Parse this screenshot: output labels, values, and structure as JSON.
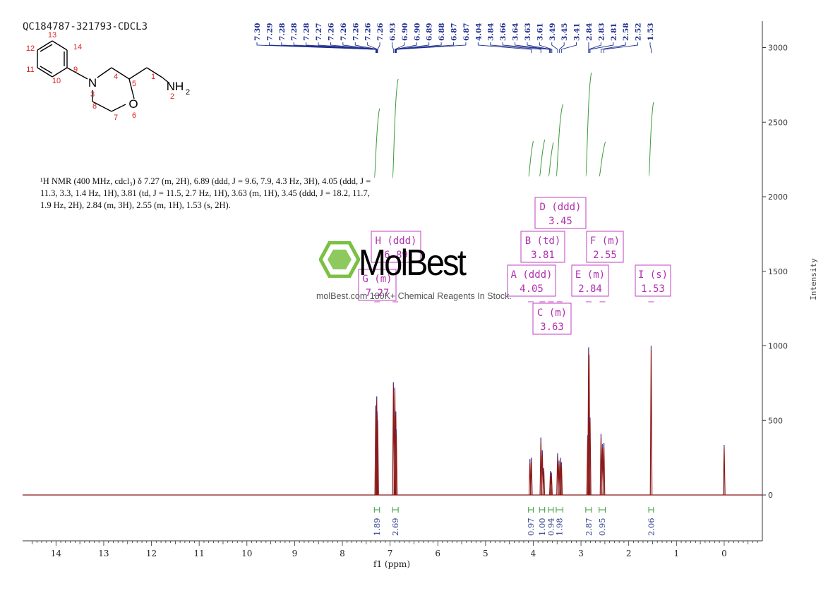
{
  "sample_id": "QC184787-321793-CDCL3",
  "structure": {
    "atoms": [
      "13",
      "14",
      "12",
      "11",
      "9",
      "10",
      "N",
      "3",
      "4",
      "5",
      "1",
      "NH",
      "2",
      "2",
      "8",
      "O",
      "6",
      "7"
    ]
  },
  "nmr_description": {
    "lines": [
      "¹H NMR (400 MHz, cdcl₃) δ 7.27 (m, 2H), 6.89 (ddd, J = 9.6, 7.9, 4.3 Hz, 3H), 4.05 (ddd, J =",
      "11.3, 3.3, 1.4 Hz, 1H), 3.81 (td, J = 11.5, 2.7 Hz, 1H), 3.63 (m, 1H), 3.45 (ddd, J = 18.2, 11.7,",
      "1.9 Hz, 2H), 2.84 (m, 3H), 2.55 (m, 1H), 1.53 (s, 2H)."
    ]
  },
  "watermark": {
    "brand": "MolBest",
    "tagline": "molBest.com 180K+ Chemical Reagents In Stock."
  },
  "colors": {
    "spectrum": "#8b1a1a",
    "peak_label": "#1f2f8f",
    "integral": "#3a9a3a",
    "multiplet_box": "#c040c0",
    "watermark_green": "#7ac043",
    "axis": "#333333"
  },
  "chart_data": {
    "type": "line",
    "xlabel": "f1 (ppm)",
    "ylabel": "Intensity",
    "x_reversed": true,
    "xlim": [
      14.7,
      -0.8
    ],
    "ylim": [
      -300,
      3200
    ],
    "x_ticks": [
      14,
      13,
      12,
      11,
      10,
      9,
      8,
      7,
      6,
      5,
      4,
      3,
      2,
      1,
      0
    ],
    "y_ticks": [
      0,
      500,
      1000,
      1500,
      2000,
      2500,
      3000
    ],
    "peak_labels": [
      "7.30",
      "7.29",
      "7.28",
      "7.28",
      "7.28",
      "7.27",
      "7.26",
      "7.26",
      "7.26",
      "7.26",
      "7.26",
      "6.93",
      "6.90",
      "6.90",
      "6.89",
      "6.88",
      "6.87",
      "6.87",
      "4.04",
      "3.84",
      "3.66",
      "3.64",
      "3.63",
      "3.61",
      "3.49",
      "3.45",
      "3.41",
      "2.84",
      "2.83",
      "2.81",
      "2.58",
      "2.52",
      "1.53"
    ],
    "peaks": [
      {
        "ppm": 7.3,
        "height": 600
      },
      {
        "ppm": 7.28,
        "height": 660
      },
      {
        "ppm": 7.27,
        "height": 560
      },
      {
        "ppm": 7.26,
        "height": 500
      },
      {
        "ppm": 6.93,
        "height": 755
      },
      {
        "ppm": 6.9,
        "height": 720
      },
      {
        "ppm": 6.88,
        "height": 560
      },
      {
        "ppm": 6.87,
        "height": 440
      },
      {
        "ppm": 4.07,
        "height": 240
      },
      {
        "ppm": 4.04,
        "height": 250
      },
      {
        "ppm": 3.84,
        "height": 385
      },
      {
        "ppm": 3.81,
        "height": 300
      },
      {
        "ppm": 3.78,
        "height": 180
      },
      {
        "ppm": 3.64,
        "height": 160
      },
      {
        "ppm": 3.62,
        "height": 150
      },
      {
        "ppm": 3.49,
        "height": 280
      },
      {
        "ppm": 3.46,
        "height": 230
      },
      {
        "ppm": 3.43,
        "height": 250
      },
      {
        "ppm": 3.41,
        "height": 220
      },
      {
        "ppm": 2.86,
        "height": 400
      },
      {
        "ppm": 2.84,
        "height": 990
      },
      {
        "ppm": 2.83,
        "height": 940
      },
      {
        "ppm": 2.81,
        "height": 520
      },
      {
        "ppm": 2.58,
        "height": 410
      },
      {
        "ppm": 2.55,
        "height": 340
      },
      {
        "ppm": 2.52,
        "height": 350
      },
      {
        "ppm": 1.53,
        "height": 1000
      },
      {
        "ppm": 0.0,
        "height": 335
      }
    ],
    "multiplets": [
      {
        "label": "H (ddd)",
        "shift": "6.89",
        "ppm": 6.89
      },
      {
        "label": "G (m)",
        "shift": "7.27",
        "ppm": 7.27
      },
      {
        "label": "D (ddd)",
        "shift": "3.45",
        "ppm": 3.45
      },
      {
        "label": "B (td)",
        "shift": "3.81",
        "ppm": 3.81
      },
      {
        "label": "F (m)",
        "shift": "2.55",
        "ppm": 2.55
      },
      {
        "label": "A (ddd)",
        "shift": "4.05",
        "ppm": 4.05
      },
      {
        "label": "E (m)",
        "shift": "2.84",
        "ppm": 2.84
      },
      {
        "label": "I (s)",
        "shift": "1.53",
        "ppm": 1.53
      },
      {
        "label": "C (m)",
        "shift": "3.63",
        "ppm": 3.63
      }
    ],
    "integrals": [
      {
        "from": 7.33,
        "to": 7.22,
        "value": "1.89"
      },
      {
        "from": 6.95,
        "to": 6.83,
        "value": "2.69"
      },
      {
        "from": 4.1,
        "to": 4.0,
        "value": "0.97"
      },
      {
        "from": 3.87,
        "to": 3.76,
        "value": "1.00"
      },
      {
        "from": 3.68,
        "to": 3.58,
        "value": "0.94"
      },
      {
        "from": 3.52,
        "to": 3.38,
        "value": "1.98"
      },
      {
        "from": 2.9,
        "to": 2.78,
        "value": "2.87"
      },
      {
        "from": 2.62,
        "to": 2.49,
        "value": "0.95"
      },
      {
        "from": 1.58,
        "to": 1.48,
        "value": "2.06"
      }
    ]
  }
}
